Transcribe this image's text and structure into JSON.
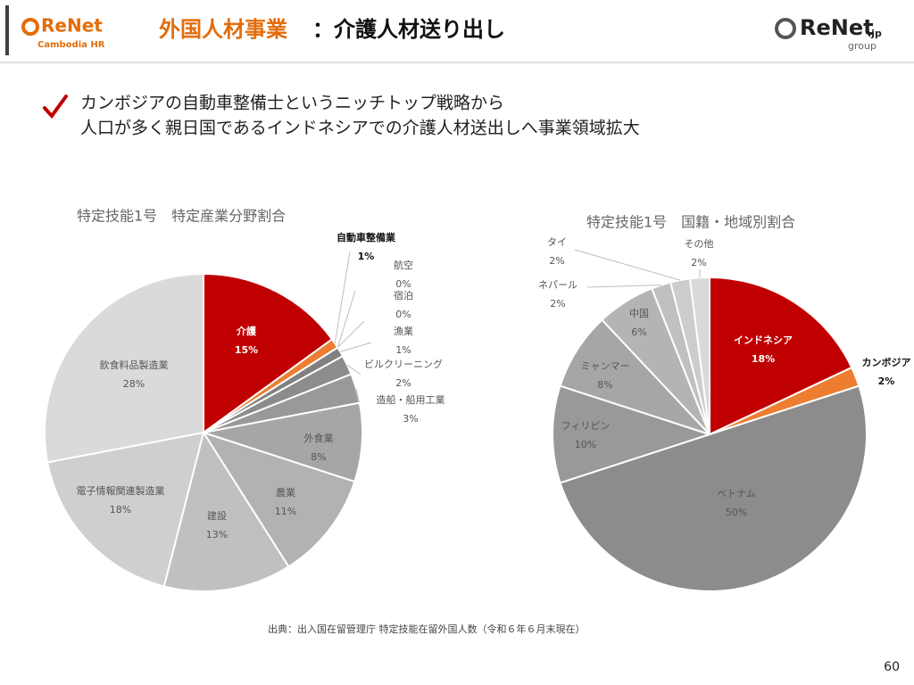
{
  "header": {
    "logo_left": "ReNet",
    "logo_left_sub": "Cambodia HR",
    "title_accent": "外国人材事業",
    "title_rest": "：介護人材送り出し",
    "logo_right": "ReNet",
    "logo_right_suffix": ".jp",
    "logo_right_sub": "group"
  },
  "bullet": [
    "カンボジアの自動車整備士というニッチトップ戦略から",
    "人口が多く親日国であるインドネシアでの介護人材送出しへ事業領域拡大"
  ],
  "source": "出典：出入国在留管理庁 特定技能在留外国人数（令和６年６月末現在）",
  "page_number": "60",
  "chart_data": [
    {
      "type": "pie",
      "title": "特定技能1号　特定産業分野割合",
      "categories": [
        "介護",
        "自動車整備業",
        "航空",
        "宿泊",
        "漁業",
        "ビルクリーニング",
        "造船・船用工業",
        "外食業",
        "農業",
        "建設",
        "電子情報関連製造業",
        "飲食料品製造業"
      ],
      "values": [
        15,
        1,
        0,
        0,
        1,
        2,
        3,
        8,
        11,
        13,
        18,
        28
      ],
      "value_labels": [
        "15%",
        "1%",
        "0%",
        "0%",
        "1%",
        "2%",
        "3%",
        "8%",
        "11%",
        "13%",
        "18%",
        "28%"
      ],
      "colors": [
        "#c00000",
        "#ed7d31",
        "#7f7f7f",
        "#7f7f7f",
        "#808080",
        "#8c8c8c",
        "#999999",
        "#a6a6a6",
        "#b2b2b2",
        "#c0c0c0",
        "#cfcfcf",
        "#dadada"
      ]
    },
    {
      "type": "pie",
      "title": "特定技能1号　国籍・地域別割合",
      "categories": [
        "インドネシア",
        "カンボジア",
        "ベトナム",
        "フィリピン",
        "ミャンマー",
        "中国",
        "ネパール",
        "タイ",
        "その他"
      ],
      "values": [
        18,
        2,
        50,
        10,
        8,
        6,
        2,
        2,
        2
      ],
      "value_labels": [
        "18%",
        "2%",
        "50%",
        "10%",
        "8%",
        "6%",
        "2%",
        "2%",
        "2%"
      ],
      "colors": [
        "#c00000",
        "#ed7d31",
        "#8c8c8c",
        "#999999",
        "#a6a6a6",
        "#b4b4b4",
        "#c0c0c0",
        "#cccccc",
        "#d9d9d9"
      ]
    }
  ]
}
